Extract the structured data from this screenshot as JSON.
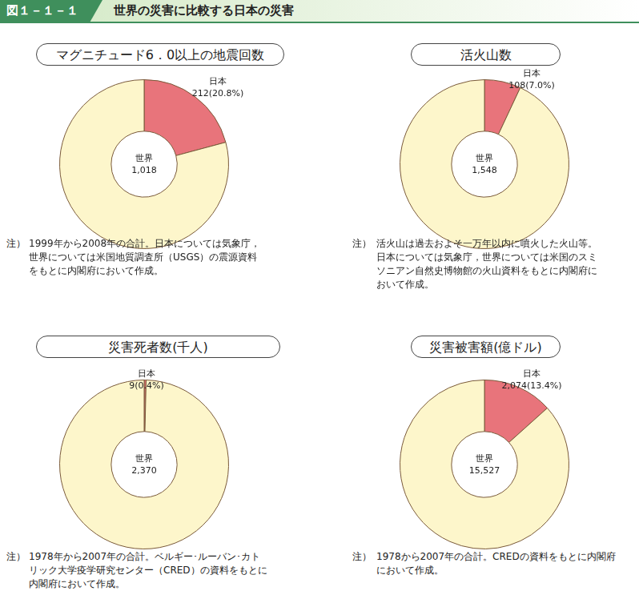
{
  "figure": {
    "number": "図１－１－１",
    "title": "世界の災害に比較する日本の災害"
  },
  "chart_data": [
    {
      "type": "doughnut",
      "title": "マグニチュード6．0以上の地震回数",
      "categories": [
        "日本",
        "世界"
      ],
      "values": [
        212,
        1018
      ],
      "value_labels": [
        "212(20.8%)",
        "1,018"
      ],
      "colors": [
        "#e8747b",
        "#fdf6cb"
      ],
      "note": {
        "label": "注）",
        "lines": [
          "1999年から2008年の合計。日本については気象庁，",
          "世界については米国地質調査所（USGS）の震源資料",
          "をもとに内閣府において作成。"
        ]
      }
    },
    {
      "type": "doughnut",
      "title": "活火山数",
      "categories": [
        "日本",
        "世界"
      ],
      "values": [
        108,
        1548
      ],
      "value_labels": [
        "108(7.0%)",
        "1,548"
      ],
      "colors": [
        "#e8747b",
        "#fdf6cb"
      ],
      "note": {
        "label": "注）",
        "lines": [
          "活火山は過去およそ一万年以内に噴火した火山等。",
          "日本については気象庁，世界については米国のスミ",
          "ソニアン自然史博物館の火山資料をもとに内閣府に",
          "おいて作成。"
        ]
      }
    },
    {
      "type": "doughnut",
      "title": "災害死者数(千人)",
      "categories": [
        "日本",
        "世界"
      ],
      "values": [
        9,
        2370
      ],
      "value_labels": [
        "9(0.4%)",
        "2,370"
      ],
      "colors": [
        "#e8747b",
        "#fdf6cb"
      ],
      "note": {
        "label": "注）",
        "lines": [
          "1978年から2007年の合計。ベルギー･ルーバン･カト",
          "リック大学疫学研究センター（CRED）の資料をもとに",
          "内閣府において作成。"
        ]
      }
    },
    {
      "type": "doughnut",
      "title": "災害被害額(億ドル)",
      "categories": [
        "日本",
        "世界"
      ],
      "values": [
        2074,
        15527
      ],
      "value_labels": [
        "2,074(13.4%)",
        "15,527"
      ],
      "colors": [
        "#e8747b",
        "#fdf6cb"
      ],
      "note": {
        "label": "注）",
        "lines": [
          "1978から2007年の合計。CREDの資料をもとに内閣府",
          "において作成。"
        ]
      }
    }
  ]
}
